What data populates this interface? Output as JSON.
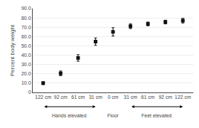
{
  "chart_data": {
    "type": "scatter",
    "categories": [
      "122 cm",
      "92 cm",
      "61 cm",
      "31 cm",
      "0 cm",
      "31 cm",
      "61 cm",
      "92 cm",
      "122 cm"
    ],
    "values": [
      10.0,
      20.5,
      37.0,
      54.5,
      65.0,
      71.0,
      73.5,
      75.5,
      77.0
    ],
    "errors": [
      1.5,
      2.5,
      3.5,
      4.0,
      4.5,
      2.5,
      2.0,
      2.0,
      2.5
    ],
    "ylabel": "Percent body weight",
    "ylim": [
      0,
      90
    ],
    "yticks": [
      0,
      {
        "value": 10.0,
        "label": "10.0"
      },
      {
        "value": 20.0,
        "label": "20.0"
      },
      {
        "value": 30.0,
        "label": "30.0"
      },
      {
        "value": 40.0,
        "label": "40.0"
      },
      {
        "value": 50.0,
        "label": "50.0"
      },
      {
        "value": 60.0,
        "label": "60.0"
      },
      {
        "value": 70.0,
        "label": "70.0"
      },
      {
        "value": 80.0,
        "label": "80.0"
      },
      {
        "value": 90.0,
        "label": "90.0"
      }
    ],
    "annotations": [
      "Hands elevated",
      "Floor",
      "Feet elevated"
    ],
    "color": "#111111",
    "marker": "square",
    "grid": true
  }
}
